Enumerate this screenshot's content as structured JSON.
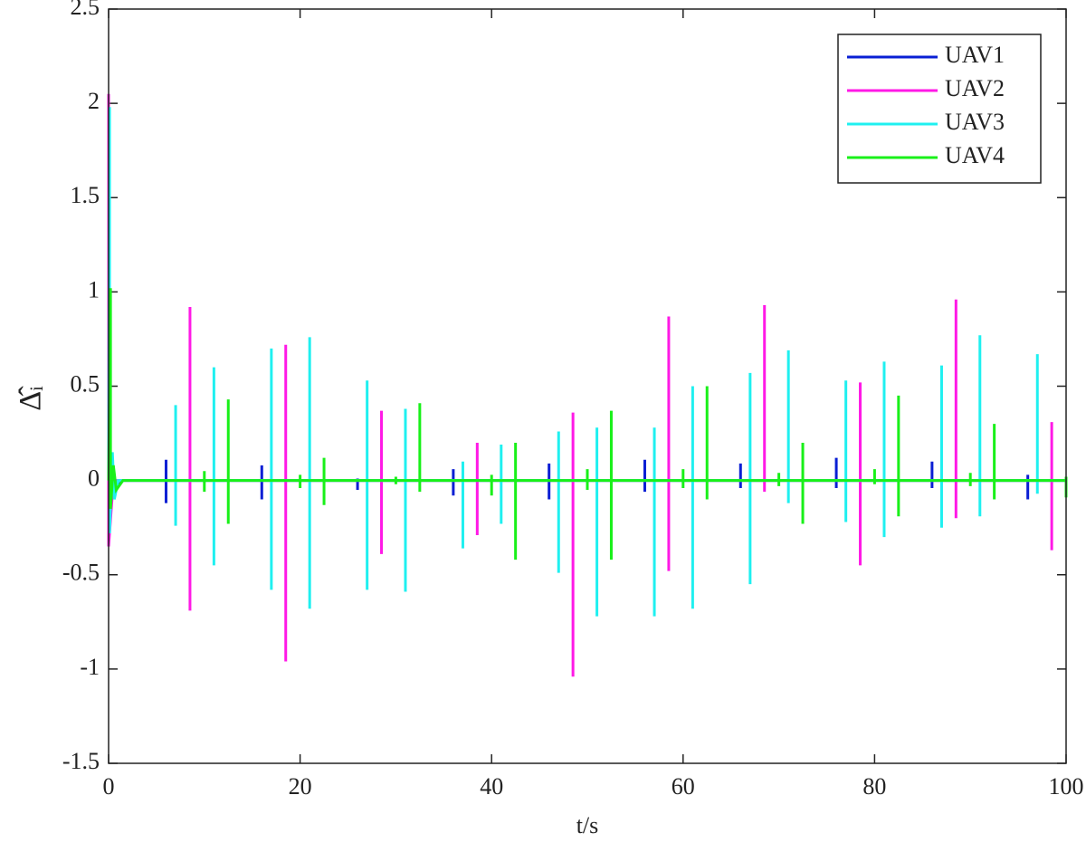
{
  "chart_data": {
    "type": "line",
    "xlabel": "t/s",
    "ylabel": "Δ̂ᵢ",
    "xlim": [
      0,
      100
    ],
    "xticks": [
      0,
      20,
      40,
      60,
      80,
      100
    ],
    "ylim": [
      -1.5,
      2.5
    ],
    "yticks": [
      -1.5,
      -1,
      -0.5,
      0,
      0.5,
      1,
      1.5,
      2,
      2.5
    ],
    "legend": "upper-right",
    "series": [
      {
        "name": "UAV1",
        "color": "#0a1fd4",
        "x": [
          0,
          0.2,
          0.4,
          1.5,
          6,
          6,
          6,
          6,
          16,
          16,
          16,
          16,
          26,
          26,
          26,
          26,
          36,
          36,
          36,
          36,
          46,
          46,
          46,
          46,
          56,
          56,
          56,
          56,
          66,
          66,
          66,
          66,
          76,
          76,
          76,
          76,
          86,
          86,
          86,
          86,
          96,
          96,
          96,
          96,
          100
        ],
        "values": [
          0,
          0.08,
          -0.06,
          0,
          0,
          0.11,
          -0.12,
          0,
          0,
          0.08,
          -0.1,
          0,
          0,
          0.01,
          -0.05,
          0,
          0,
          0.06,
          -0.08,
          0,
          0,
          0.09,
          -0.1,
          0,
          0,
          0.11,
          -0.06,
          0,
          0,
          0.09,
          -0.04,
          0,
          0,
          0.12,
          -0.04,
          0,
          0,
          0.1,
          -0.04,
          0,
          0,
          0.03,
          -0.1,
          0,
          0
        ]
      },
      {
        "name": "UAV2",
        "color": "#ff19e6",
        "x": [
          0,
          0,
          0,
          0.5,
          8.5,
          8.5,
          8.5,
          8.5,
          18.5,
          18.5,
          18.5,
          18.5,
          28.5,
          28.5,
          28.5,
          28.5,
          38.5,
          38.5,
          38.5,
          38.5,
          48.5,
          48.5,
          48.5,
          48.5,
          58.5,
          58.5,
          58.5,
          58.5,
          68.5,
          68.5,
          68.5,
          68.5,
          78.5,
          78.5,
          78.5,
          78.5,
          88.5,
          88.5,
          88.5,
          88.5,
          98.5,
          98.5,
          98.5,
          98.5,
          100
        ],
        "values": [
          0,
          2.05,
          -0.35,
          0,
          0,
          0.92,
          -0.69,
          0,
          0,
          0.72,
          -0.96,
          0,
          0,
          0.37,
          -0.39,
          0,
          0,
          0.2,
          -0.29,
          0,
          0,
          0.36,
          -1.04,
          0,
          0,
          0.87,
          -0.48,
          0,
          0,
          0.93,
          -0.06,
          0,
          0,
          0.52,
          -0.45,
          0,
          0,
          0.96,
          -0.2,
          0,
          0,
          0.31,
          -0.37,
          0,
          0
        ]
      },
      {
        "name": "UAV3",
        "color": "#1ff0f0",
        "x": [
          0,
          0.1,
          0.1,
          0.4,
          0.6,
          1,
          7,
          7,
          7,
          7,
          11,
          11,
          11,
          11,
          17,
          17,
          17,
          17,
          21,
          21,
          21,
          21,
          27,
          27,
          27,
          27,
          31,
          31,
          31,
          31,
          37,
          37,
          37,
          37,
          41,
          41,
          41,
          41,
          47,
          47,
          47,
          47,
          51,
          51,
          51,
          51,
          57,
          57,
          57,
          57,
          61,
          61,
          61,
          61,
          67,
          67,
          67,
          67,
          71,
          71,
          71,
          71,
          77,
          77,
          77,
          77,
          81,
          81,
          81,
          81,
          87,
          87,
          87,
          87,
          91,
          91,
          91,
          91,
          97,
          97,
          97,
          97,
          100
        ],
        "values": [
          0,
          1.98,
          -0.28,
          0.15,
          -0.1,
          0,
          0,
          0.4,
          -0.24,
          0,
          0,
          0.6,
          -0.45,
          0,
          0,
          0.7,
          -0.58,
          0,
          0,
          0.76,
          -0.68,
          0,
          0,
          0.53,
          -0.58,
          0,
          0,
          0.38,
          -0.59,
          0,
          0,
          0.1,
          -0.36,
          0,
          0,
          0.19,
          -0.23,
          0,
          0,
          0.26,
          -0.49,
          0,
          0,
          0.28,
          -0.72,
          0,
          0,
          0.28,
          -0.72,
          0,
          0,
          0.5,
          -0.68,
          0,
          0,
          0.57,
          -0.55,
          0,
          0,
          0.69,
          -0.12,
          0,
          0,
          0.53,
          -0.22,
          0,
          0,
          0.63,
          -0.3,
          0,
          0,
          0.61,
          -0.25,
          0,
          0,
          0.77,
          -0.19,
          0,
          0,
          0.67,
          -0.07,
          0,
          0
        ]
      },
      {
        "name": "UAV4",
        "color": "#19f019",
        "x": [
          0,
          0.2,
          0.2,
          0.5,
          0.8,
          1.5,
          10,
          10,
          10,
          10,
          12.5,
          12.5,
          12.5,
          12.5,
          20,
          20,
          20,
          20,
          22.5,
          22.5,
          22.5,
          22.5,
          30,
          30,
          30,
          30,
          32.5,
          32.5,
          32.5,
          32.5,
          40,
          40,
          40,
          40,
          42.5,
          42.5,
          42.5,
          42.5,
          50,
          50,
          50,
          50,
          52.5,
          52.5,
          52.5,
          52.5,
          60,
          60,
          60,
          60,
          62.5,
          62.5,
          62.5,
          62.5,
          70,
          70,
          70,
          70,
          72.5,
          72.5,
          72.5,
          72.5,
          80,
          80,
          80,
          80,
          82.5,
          82.5,
          82.5,
          82.5,
          90,
          90,
          90,
          90,
          92.5,
          92.5,
          92.5,
          92.5,
          100,
          100,
          100
        ],
        "values": [
          0,
          1.02,
          -0.15,
          0.08,
          -0.05,
          0,
          0,
          0.05,
          -0.06,
          0,
          0,
          0.43,
          -0.23,
          0,
          0,
          0.03,
          -0.04,
          0,
          0,
          0.12,
          -0.13,
          0,
          0,
          0.02,
          -0.02,
          0,
          0,
          0.41,
          -0.06,
          0,
          0,
          0.03,
          -0.08,
          0,
          0,
          0.2,
          -0.42,
          0,
          0,
          0.06,
          -0.05,
          0,
          0,
          0.37,
          -0.42,
          0,
          0,
          0.06,
          -0.04,
          0,
          0,
          0.5,
          -0.1,
          0,
          0,
          0.04,
          -0.03,
          0,
          0,
          0.2,
          -0.23,
          0,
          0,
          0.06,
          -0.02,
          0,
          0,
          0.45,
          -0.19,
          0,
          0,
          0.04,
          -0.03,
          0,
          0,
          0.3,
          -0.1,
          0,
          0,
          0.02,
          -0.09
        ]
      }
    ]
  }
}
